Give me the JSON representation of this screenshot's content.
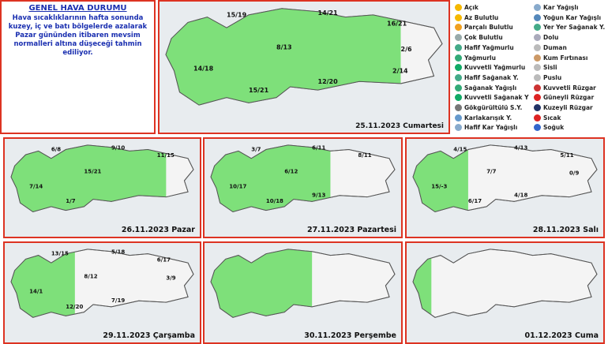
{
  "header": {
    "title": "GENEL HAVA DURUMU",
    "text": "Hava sıcaklıklarının hafta sonunda kuzey, iç ve batı bölgelerde azalarak Pazar gününden itibaren mevsim normalleri altına düşeceği tahmin ediliyor."
  },
  "legend": [
    "Açık",
    "Az Bulutlu",
    "Parçalı Bulutlu",
    "Çok Bulutlu",
    "Hafif Yağmurlu",
    "Yağmurlu",
    "Kuvvetli Yağmurlu",
    "Hafif Sağanak Y.",
    "Sağanak Yağışlı",
    "Kuvvetli Sağanak Y",
    "Gökgürültülü S.Y.",
    "Karlakarışık Y.",
    "Hafif Kar Yağışlı",
    "Kar Yağışlı",
    "Yoğun Kar Yağışlı",
    "Yer Yer Sağanak Y.",
    "Dolu",
    "Duman",
    "Kum Fırtınası",
    "Sisli",
    "Puslu",
    "Kuvvetli Rüzgar",
    "Güneyli Rüzgar",
    "Kuzeyli Rüzgar",
    "Sıcak",
    "Soğuk"
  ],
  "panels": [
    {
      "date": "25.11.2023 Cumartesi",
      "temps": [
        "15/19",
        "14/21",
        "16/21",
        "8/13",
        "14/18",
        "15/21",
        "12/20",
        "2/6",
        "2/14"
      ]
    },
    {
      "date": "26.11.2023 Pazar",
      "temps": [
        "6/8",
        "9/10",
        "11/15",
        "15/21",
        "7/14",
        "1/7"
      ]
    },
    {
      "date": "27.11.2023 Pazartesi",
      "temps": [
        "3/7",
        "6/11",
        "8/11",
        "6/12",
        "10/17",
        "10/18",
        "9/13"
      ]
    },
    {
      "date": "28.11.2023 Salı",
      "temps": [
        "4/15",
        "4/13",
        "5/11",
        "7/7",
        "15/-3",
        "6/17",
        "4/18",
        "0/9"
      ]
    },
    {
      "date": "29.11.2023 Çarşamba",
      "temps": [
        "13/15",
        "5/18",
        "6/17",
        "8/12",
        "14/1",
        "12/20",
        "7/19",
        "3/9"
      ]
    },
    {
      "date": "30.11.2023 Perşembe",
      "temps": []
    },
    {
      "date": "01.12.2023 Cuma",
      "temps": []
    }
  ]
}
